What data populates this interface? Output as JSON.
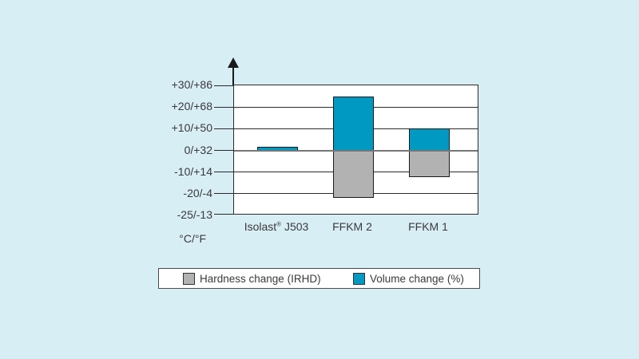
{
  "page": {
    "background_color": "#d8eef5"
  },
  "chart_data": {
    "type": "bar",
    "title": "",
    "categories": [
      "Isolast® J503",
      "FFKM 2",
      "FFKM 1"
    ],
    "series": [
      {
        "name": "Hardness change (IRHD)",
        "color": "#b2b2b2",
        "values": [
          0,
          -21,
          -12.5
        ]
      },
      {
        "name": "Volume change (%)",
        "color": "#0099c2",
        "values": [
          1.5,
          25,
          10
        ]
      }
    ],
    "yticks": [
      {
        "value": 30,
        "label": "+30/+86"
      },
      {
        "value": 20,
        "label": "+20/+68"
      },
      {
        "value": 10,
        "label": "+10/+50"
      },
      {
        "value": 0,
        "label": "0/+32"
      },
      {
        "value": -10,
        "label": "-10/+14"
      },
      {
        "value": -20,
        "label": "-20/-4"
      },
      {
        "value": -25,
        "label": "-25/-13"
      }
    ],
    "y_unit_label": "°C/°F",
    "grid": true,
    "zero_line": true,
    "legend_position": "bottom"
  },
  "legend": {
    "items": [
      {
        "label": "Hardness change (IRHD)",
        "color": "#b2b2b2"
      },
      {
        "label": "Volume change (%)",
        "color": "#0099c2"
      }
    ]
  }
}
